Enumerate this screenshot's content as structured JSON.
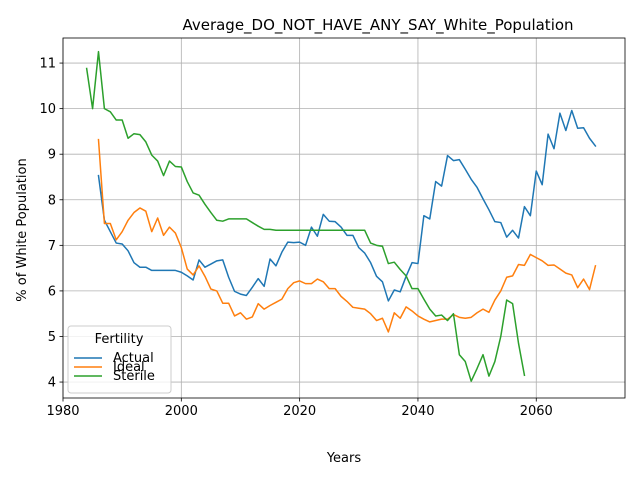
{
  "chart_data": {
    "type": "line",
    "title": "Average_DO_NOT_HAVE_ANY_SAY_White_Population",
    "xlabel": "Years",
    "ylabel": "% of White Population",
    "xlim": [
      1980,
      2075
    ],
    "ylim": [
      3.65,
      11.55
    ],
    "xticks": [
      1980,
      2000,
      2020,
      2040,
      2060
    ],
    "yticks": [
      4,
      5,
      6,
      7,
      8,
      9,
      10,
      11
    ],
    "grid": true,
    "legend": {
      "title": "Fertility",
      "placement": "lower-left"
    },
    "series": [
      {
        "name": "Actual",
        "color": "#1f77b4",
        "points": [
          [
            1986,
            8.53
          ],
          [
            1987,
            7.55
          ],
          [
            1988,
            7.3
          ],
          [
            1989,
            7.05
          ],
          [
            1990,
            7.03
          ],
          [
            1991,
            6.88
          ],
          [
            1992,
            6.62
          ],
          [
            1993,
            6.52
          ],
          [
            1994,
            6.52
          ],
          [
            1995,
            6.45
          ],
          [
            1996,
            6.45
          ],
          [
            1997,
            6.45
          ],
          [
            1998,
            6.45
          ],
          [
            1999,
            6.45
          ],
          [
            2000,
            6.41
          ],
          [
            2001,
            6.33
          ],
          [
            2002,
            6.24
          ],
          [
            2003,
            6.68
          ],
          [
            2004,
            6.52
          ],
          [
            2005,
            6.59
          ],
          [
            2006,
            6.66
          ],
          [
            2007,
            6.68
          ],
          [
            2008,
            6.3
          ],
          [
            2009,
            5.99
          ],
          [
            2010,
            5.93
          ],
          [
            2011,
            5.9
          ],
          [
            2012,
            6.08
          ],
          [
            2013,
            6.27
          ],
          [
            2014,
            6.1
          ],
          [
            2015,
            6.7
          ],
          [
            2016,
            6.55
          ],
          [
            2017,
            6.85
          ],
          [
            2018,
            7.07
          ],
          [
            2019,
            7.06
          ],
          [
            2020,
            7.07
          ],
          [
            2021,
            7.0
          ],
          [
            2022,
            7.4
          ],
          [
            2023,
            7.2
          ],
          [
            2024,
            7.68
          ],
          [
            2025,
            7.53
          ],
          [
            2026,
            7.52
          ],
          [
            2027,
            7.4
          ],
          [
            2028,
            7.22
          ],
          [
            2029,
            7.22
          ],
          [
            2030,
            6.95
          ],
          [
            2031,
            6.83
          ],
          [
            2032,
            6.62
          ],
          [
            2033,
            6.32
          ],
          [
            2034,
            6.2
          ],
          [
            2035,
            5.78
          ],
          [
            2036,
            6.02
          ],
          [
            2037,
            5.98
          ],
          [
            2038,
            6.32
          ],
          [
            2039,
            6.62
          ],
          [
            2040,
            6.6
          ],
          [
            2041,
            7.65
          ],
          [
            2042,
            7.58
          ],
          [
            2043,
            8.4
          ],
          [
            2044,
            8.3
          ],
          [
            2045,
            8.97
          ],
          [
            2046,
            8.86
          ],
          [
            2047,
            8.88
          ],
          [
            2048,
            8.67
          ],
          [
            2049,
            8.45
          ],
          [
            2050,
            8.27
          ],
          [
            2051,
            8.02
          ],
          [
            2052,
            7.78
          ],
          [
            2053,
            7.52
          ],
          [
            2054,
            7.5
          ],
          [
            2055,
            7.18
          ],
          [
            2056,
            7.33
          ],
          [
            2057,
            7.16
          ],
          [
            2058,
            7.85
          ],
          [
            2059,
            7.65
          ],
          [
            2060,
            8.63
          ],
          [
            2061,
            8.33
          ],
          [
            2062,
            9.44
          ],
          [
            2063,
            9.12
          ],
          [
            2064,
            9.9
          ],
          [
            2065,
            9.52
          ],
          [
            2066,
            9.96
          ],
          [
            2067,
            9.57
          ],
          [
            2068,
            9.58
          ],
          [
            2069,
            9.35
          ],
          [
            2070,
            9.18
          ]
        ]
      },
      {
        "name": "Ideal",
        "color": "#ff7f0e",
        "points": [
          [
            1986,
            9.32
          ],
          [
            1987,
            7.48
          ],
          [
            1988,
            7.48
          ],
          [
            1989,
            7.12
          ],
          [
            1990,
            7.3
          ],
          [
            1991,
            7.55
          ],
          [
            1992,
            7.72
          ],
          [
            1993,
            7.82
          ],
          [
            1994,
            7.75
          ],
          [
            1995,
            7.3
          ],
          [
            1996,
            7.6
          ],
          [
            1997,
            7.22
          ],
          [
            1998,
            7.4
          ],
          [
            1999,
            7.27
          ],
          [
            2000,
            6.95
          ],
          [
            2001,
            6.48
          ],
          [
            2002,
            6.35
          ],
          [
            2003,
            6.55
          ],
          [
            2004,
            6.32
          ],
          [
            2005,
            6.04
          ],
          [
            2006,
            6.0
          ],
          [
            2007,
            5.73
          ],
          [
            2008,
            5.73
          ],
          [
            2009,
            5.45
          ],
          [
            2010,
            5.52
          ],
          [
            2011,
            5.38
          ],
          [
            2012,
            5.43
          ],
          [
            2013,
            5.72
          ],
          [
            2014,
            5.6
          ],
          [
            2015,
            5.68
          ],
          [
            2016,
            5.75
          ],
          [
            2017,
            5.82
          ],
          [
            2018,
            6.05
          ],
          [
            2019,
            6.18
          ],
          [
            2020,
            6.22
          ],
          [
            2021,
            6.16
          ],
          [
            2022,
            6.16
          ],
          [
            2023,
            6.26
          ],
          [
            2024,
            6.2
          ],
          [
            2025,
            6.05
          ],
          [
            2026,
            6.05
          ],
          [
            2027,
            5.88
          ],
          [
            2028,
            5.77
          ],
          [
            2029,
            5.64
          ],
          [
            2030,
            5.62
          ],
          [
            2031,
            5.6
          ],
          [
            2032,
            5.5
          ],
          [
            2033,
            5.35
          ],
          [
            2034,
            5.4
          ],
          [
            2035,
            5.1
          ],
          [
            2036,
            5.52
          ],
          [
            2037,
            5.4
          ],
          [
            2038,
            5.65
          ],
          [
            2039,
            5.56
          ],
          [
            2040,
            5.45
          ],
          [
            2041,
            5.38
          ],
          [
            2042,
            5.32
          ],
          [
            2043,
            5.35
          ],
          [
            2044,
            5.38
          ],
          [
            2045,
            5.38
          ],
          [
            2046,
            5.48
          ],
          [
            2047,
            5.42
          ],
          [
            2048,
            5.4
          ],
          [
            2049,
            5.42
          ],
          [
            2050,
            5.52
          ],
          [
            2051,
            5.6
          ],
          [
            2052,
            5.53
          ],
          [
            2053,
            5.8
          ],
          [
            2054,
            6.0
          ],
          [
            2055,
            6.3
          ],
          [
            2056,
            6.33
          ],
          [
            2057,
            6.58
          ],
          [
            2058,
            6.56
          ],
          [
            2059,
            6.8
          ],
          [
            2060,
            6.73
          ],
          [
            2061,
            6.66
          ],
          [
            2062,
            6.56
          ],
          [
            2063,
            6.57
          ],
          [
            2064,
            6.48
          ],
          [
            2065,
            6.39
          ],
          [
            2066,
            6.35
          ],
          [
            2067,
            6.07
          ],
          [
            2068,
            6.26
          ],
          [
            2069,
            6.03
          ],
          [
            2070,
            6.55
          ]
        ]
      },
      {
        "name": "Sterile",
        "color": "#2ca02c",
        "points": [
          [
            1984,
            10.88
          ],
          [
            1985,
            10.0
          ],
          [
            1986,
            11.25
          ],
          [
            1987,
            10.0
          ],
          [
            1988,
            9.93
          ],
          [
            1989,
            9.75
          ],
          [
            1990,
            9.75
          ],
          [
            1991,
            9.35
          ],
          [
            1992,
            9.45
          ],
          [
            1993,
            9.43
          ],
          [
            1994,
            9.27
          ],
          [
            1995,
            8.98
          ],
          [
            1996,
            8.85
          ],
          [
            1997,
            8.53
          ],
          [
            1998,
            8.85
          ],
          [
            1999,
            8.73
          ],
          [
            2000,
            8.72
          ],
          [
            2001,
            8.4
          ],
          [
            2002,
            8.15
          ],
          [
            2003,
            8.1
          ],
          [
            2004,
            7.9
          ],
          [
            2005,
            7.72
          ],
          [
            2006,
            7.55
          ],
          [
            2007,
            7.53
          ],
          [
            2008,
            7.58
          ],
          [
            2009,
            7.58
          ],
          [
            2010,
            7.58
          ],
          [
            2011,
            7.58
          ],
          [
            2012,
            7.5
          ],
          [
            2013,
            7.42
          ],
          [
            2014,
            7.35
          ],
          [
            2015,
            7.35
          ],
          [
            2016,
            7.33
          ],
          [
            2017,
            7.33
          ],
          [
            2018,
            7.33
          ],
          [
            2019,
            7.33
          ],
          [
            2020,
            7.33
          ],
          [
            2021,
            7.33
          ],
          [
            2022,
            7.33
          ],
          [
            2023,
            7.33
          ],
          [
            2024,
            7.33
          ],
          [
            2025,
            7.33
          ],
          [
            2026,
            7.33
          ],
          [
            2027,
            7.33
          ],
          [
            2028,
            7.33
          ],
          [
            2029,
            7.33
          ],
          [
            2030,
            7.33
          ],
          [
            2031,
            7.33
          ],
          [
            2032,
            7.05
          ],
          [
            2033,
            7.0
          ],
          [
            2034,
            6.98
          ],
          [
            2035,
            6.6
          ],
          [
            2036,
            6.63
          ],
          [
            2037,
            6.47
          ],
          [
            2038,
            6.33
          ],
          [
            2039,
            6.05
          ],
          [
            2040,
            6.05
          ],
          [
            2041,
            5.82
          ],
          [
            2042,
            5.6
          ],
          [
            2043,
            5.45
          ],
          [
            2044,
            5.47
          ],
          [
            2045,
            5.35
          ],
          [
            2046,
            5.5
          ],
          [
            2047,
            4.6
          ],
          [
            2048,
            4.45
          ],
          [
            2049,
            4.02
          ],
          [
            2050,
            4.3
          ],
          [
            2051,
            4.6
          ],
          [
            2052,
            4.13
          ],
          [
            2053,
            4.45
          ],
          [
            2054,
            5.0
          ],
          [
            2055,
            5.8
          ],
          [
            2056,
            5.72
          ],
          [
            2057,
            4.85
          ],
          [
            2058,
            4.15
          ]
        ]
      }
    ]
  }
}
